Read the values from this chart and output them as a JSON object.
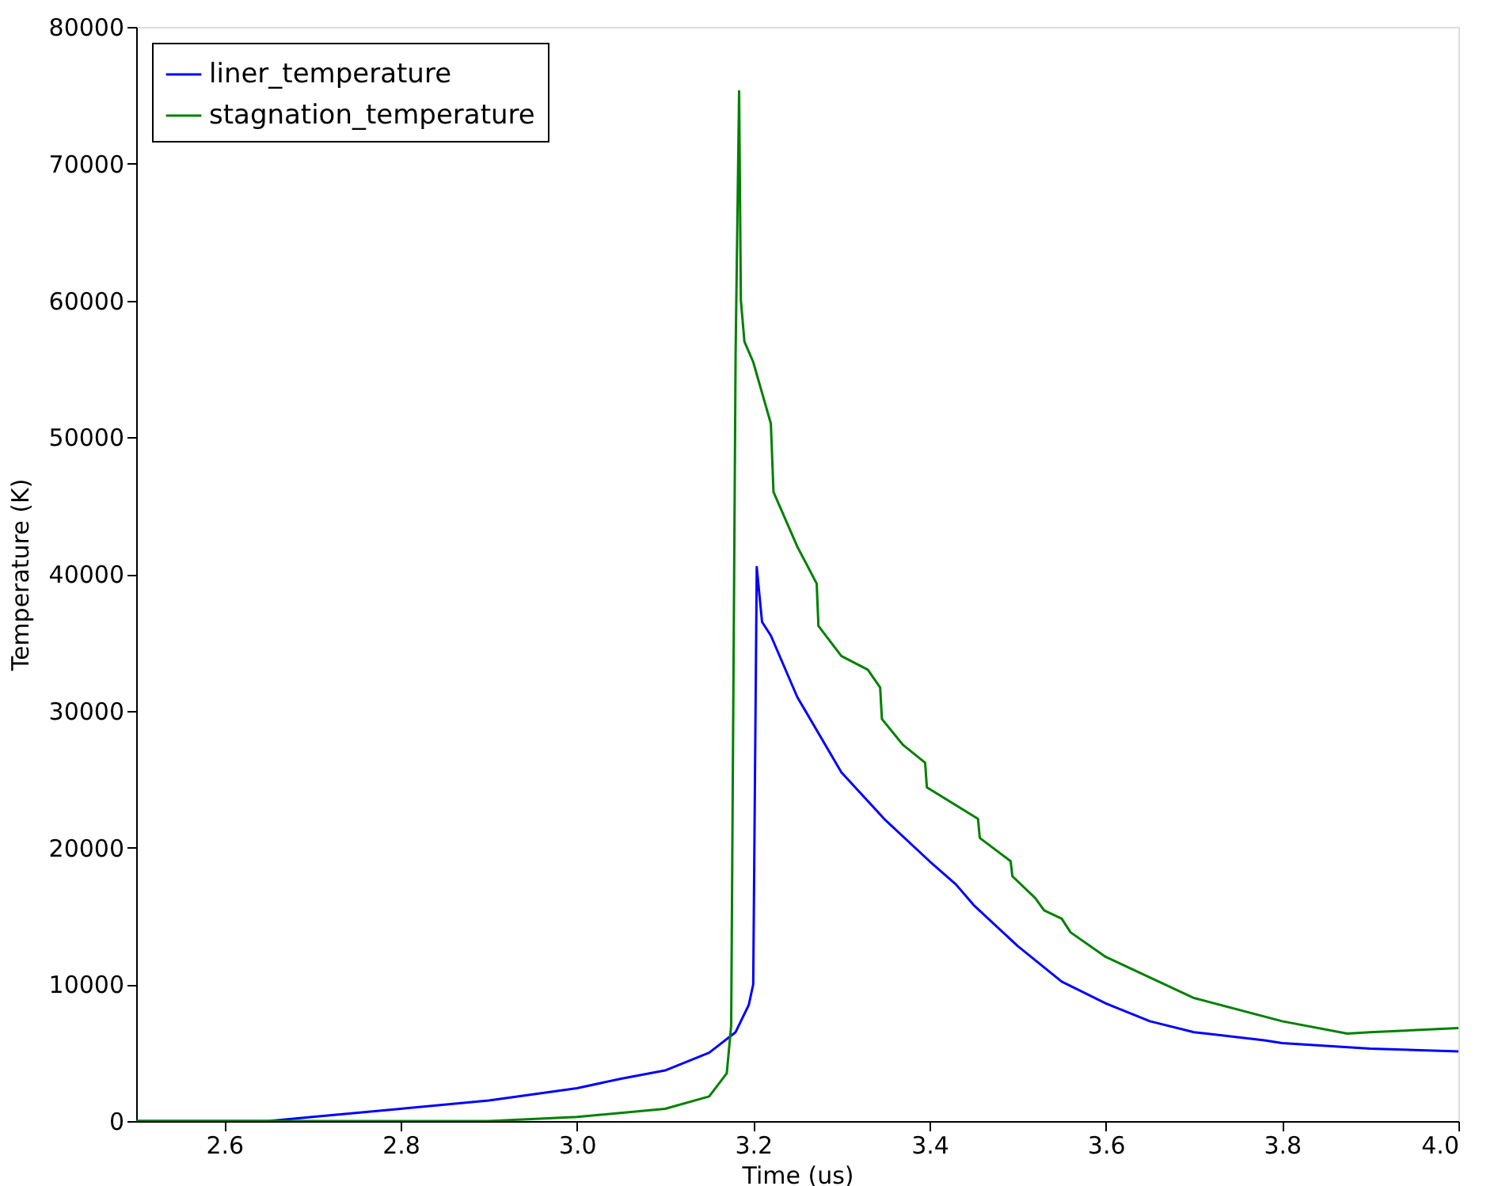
{
  "chart_data": {
    "type": "line",
    "xlabel": "Time (us)",
    "ylabel": "Temperature (K)",
    "xlim": [
      2.5,
      4.0
    ],
    "xticks": [
      {
        "value": 2.6,
        "label": "2.6"
      },
      {
        "value": 2.8,
        "label": "2.8"
      },
      {
        "value": 3.0,
        "label": "3.0"
      },
      {
        "value": 3.2,
        "label": "3.2"
      },
      {
        "value": 3.4,
        "label": "3.4"
      },
      {
        "value": 3.6,
        "label": "3.6"
      },
      {
        "value": 3.8,
        "label": "3.8"
      },
      {
        "value": 4.0,
        "label": "4.0"
      }
    ],
    "ylim": [
      0,
      80000
    ],
    "yticks": [
      0,
      10000,
      20000,
      30000,
      40000,
      50000,
      60000,
      70000,
      80000
    ],
    "grid": false,
    "legend": "top left",
    "line_style": "solid",
    "marker": "none",
    "series": [
      {
        "name": "liner_temperature",
        "color": "#0000ff",
        "x": [
          2.5,
          2.65,
          2.7,
          2.8,
          2.9,
          3.0,
          3.05,
          3.1,
          3.15,
          3.18,
          3.195,
          3.2,
          3.204,
          3.21,
          3.22,
          3.25,
          3.3,
          3.35,
          3.4,
          3.43,
          3.45,
          3.5,
          3.55,
          3.6,
          3.65,
          3.7,
          3.78,
          3.8,
          3.9,
          4.0
        ],
        "values": [
          0,
          0,
          300,
          900,
          1500,
          2400,
          3100,
          3700,
          5000,
          6500,
          8500,
          10000,
          40500,
          36500,
          35500,
          31000,
          25500,
          22000,
          19000,
          17300,
          15800,
          12800,
          10200,
          8600,
          7300,
          6500,
          5900,
          5700,
          5300,
          5100
        ]
      },
      {
        "name": "stagnation_temperature",
        "color": "#008000",
        "x": [
          2.5,
          2.9,
          3.0,
          3.1,
          3.15,
          3.17,
          3.175,
          3.18,
          3.184,
          3.186,
          3.19,
          3.2,
          3.22,
          3.223,
          3.25,
          3.272,
          3.274,
          3.3,
          3.33,
          3.344,
          3.346,
          3.37,
          3.395,
          3.397,
          3.455,
          3.457,
          3.492,
          3.494,
          3.52,
          3.53,
          3.55,
          3.56,
          3.6,
          3.65,
          3.7,
          3.8,
          3.874,
          3.9,
          4.0
        ],
        "values": [
          0,
          0,
          300,
          900,
          1800,
          3500,
          7000,
          56000,
          75300,
          60000,
          57000,
          55500,
          51000,
          46000,
          42000,
          39300,
          36200,
          34000,
          33000,
          31700,
          29400,
          27500,
          26200,
          24400,
          22100,
          20700,
          19000,
          17900,
          16300,
          15400,
          14800,
          13800,
          12000,
          10500,
          9000,
          7300,
          6400,
          6500,
          6800
        ]
      }
    ]
  }
}
